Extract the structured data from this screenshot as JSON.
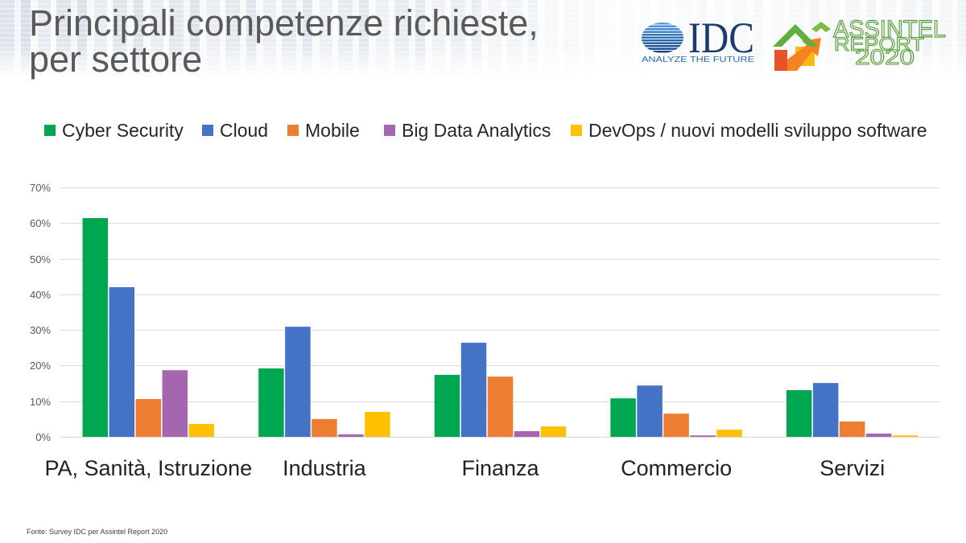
{
  "slide": {
    "source_note": "Fonte: Survey IDC per Assintel Report 2020"
  },
  "logos": {
    "idc": {
      "icon": "globe-icon",
      "wordmark": "IDC",
      "tagline": "ANALYZE THE FUTURE",
      "wordmark_color": "#1B3A6E",
      "tagline_color": "#2B6CB0"
    },
    "assintel": {
      "icon": "house-arrows-icon",
      "line1": "ASSINTEL",
      "line2": "REPORT",
      "line3": "2020",
      "lettering_color": "#5A9E3A"
    }
  },
  "chart_data": {
    "type": "bar",
    "title": "Principali competenze richieste, per settore",
    "categories": [
      "PA, Sanità, Istruzione",
      "Industria",
      "Finanza",
      "Commercio",
      "Servizi"
    ],
    "series": [
      {
        "name": "Cyber Security",
        "color": "#00A650",
        "values": [
          61.4,
          19.2,
          17.4,
          10.8,
          13.1
        ]
      },
      {
        "name": "Cloud",
        "color": "#4472C4",
        "values": [
          42.0,
          30.9,
          26.4,
          14.4,
          15.1
        ]
      },
      {
        "name": "Mobile",
        "color": "#ED7D31",
        "values": [
          10.6,
          5.0,
          16.9,
          6.5,
          4.3
        ]
      },
      {
        "name": "Big Data Analytics",
        "color": "#A566B0",
        "values": [
          18.7,
          0.7,
          1.6,
          0.4,
          0.9
        ]
      },
      {
        "name": "DevOps / nuovi modelli sviluppo software",
        "color": "#FFC000",
        "values": [
          3.6,
          7.0,
          2.9,
          2.0,
          0.4
        ]
      }
    ],
    "ylim": [
      0,
      70
    ],
    "yticks": [
      0,
      10,
      20,
      30,
      40,
      50,
      60,
      70
    ],
    "ytick_labels": [
      "0%",
      "10%",
      "20%",
      "30%",
      "40%",
      "50%",
      "60%",
      "70%"
    ],
    "grid": true,
    "legend_position": "top"
  }
}
